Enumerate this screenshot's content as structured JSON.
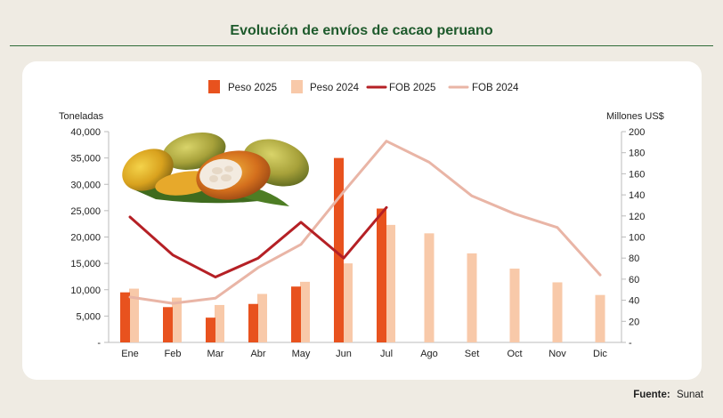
{
  "header": {
    "title": "Evolución de envíos de cacao peruano"
  },
  "footer": {
    "source_label": "Fuente:",
    "source_value": "Sunat"
  },
  "colors": {
    "peso2025": "#e8521e",
    "peso2024": "#f8c9a9",
    "fob2025": "#b52025",
    "fob2024": "#e9b5a6",
    "title": "#1e5a2c",
    "background": "#efebe3"
  },
  "image": {
    "name": "cacao-pods-photo"
  },
  "chart_data": {
    "type": "bar",
    "title": "Evolución de envíos de cacao peruano",
    "categories": [
      "Ene",
      "Feb",
      "Mar",
      "Abr",
      "May",
      "Jun",
      "Jul",
      "Ago",
      "Set",
      "Oct",
      "Nov",
      "Dic"
    ],
    "y_left_label": "Toneladas",
    "y_right_label": "Millones  US$",
    "y_left_lim": [
      0,
      40000
    ],
    "y_right_lim": [
      0,
      200
    ],
    "y_left_ticks": [
      "-",
      "5,000",
      "10,000",
      "15,000",
      "20,000",
      "25,000",
      "30,000",
      "35,000",
      "40,000"
    ],
    "y_right_ticks": [
      "-",
      "20",
      "40",
      "60",
      "80",
      "100",
      "120",
      "140",
      "160",
      "180",
      "200"
    ],
    "legend_position": "top",
    "grid": false,
    "series": [
      {
        "name": "Peso 2025",
        "type": "bar",
        "axis": "left",
        "values": [
          9500,
          6700,
          4700,
          7300,
          10600,
          35000,
          25400,
          null,
          null,
          null,
          null,
          null
        ]
      },
      {
        "name": "Peso 2024",
        "type": "bar",
        "axis": "left",
        "values": [
          10200,
          8500,
          7100,
          9200,
          11500,
          15000,
          22300,
          20700,
          16900,
          14000,
          11400,
          9000
        ]
      },
      {
        "name": "FOB 2025",
        "type": "line",
        "axis": "right",
        "values": [
          119,
          83,
          62,
          80,
          114,
          80,
          128,
          null,
          null,
          null,
          null,
          null
        ]
      },
      {
        "name": "FOB 2024",
        "type": "line",
        "axis": "right",
        "values": [
          43,
          37,
          42,
          71,
          93,
          143,
          191,
          171,
          139,
          122,
          109,
          64
        ]
      }
    ]
  }
}
